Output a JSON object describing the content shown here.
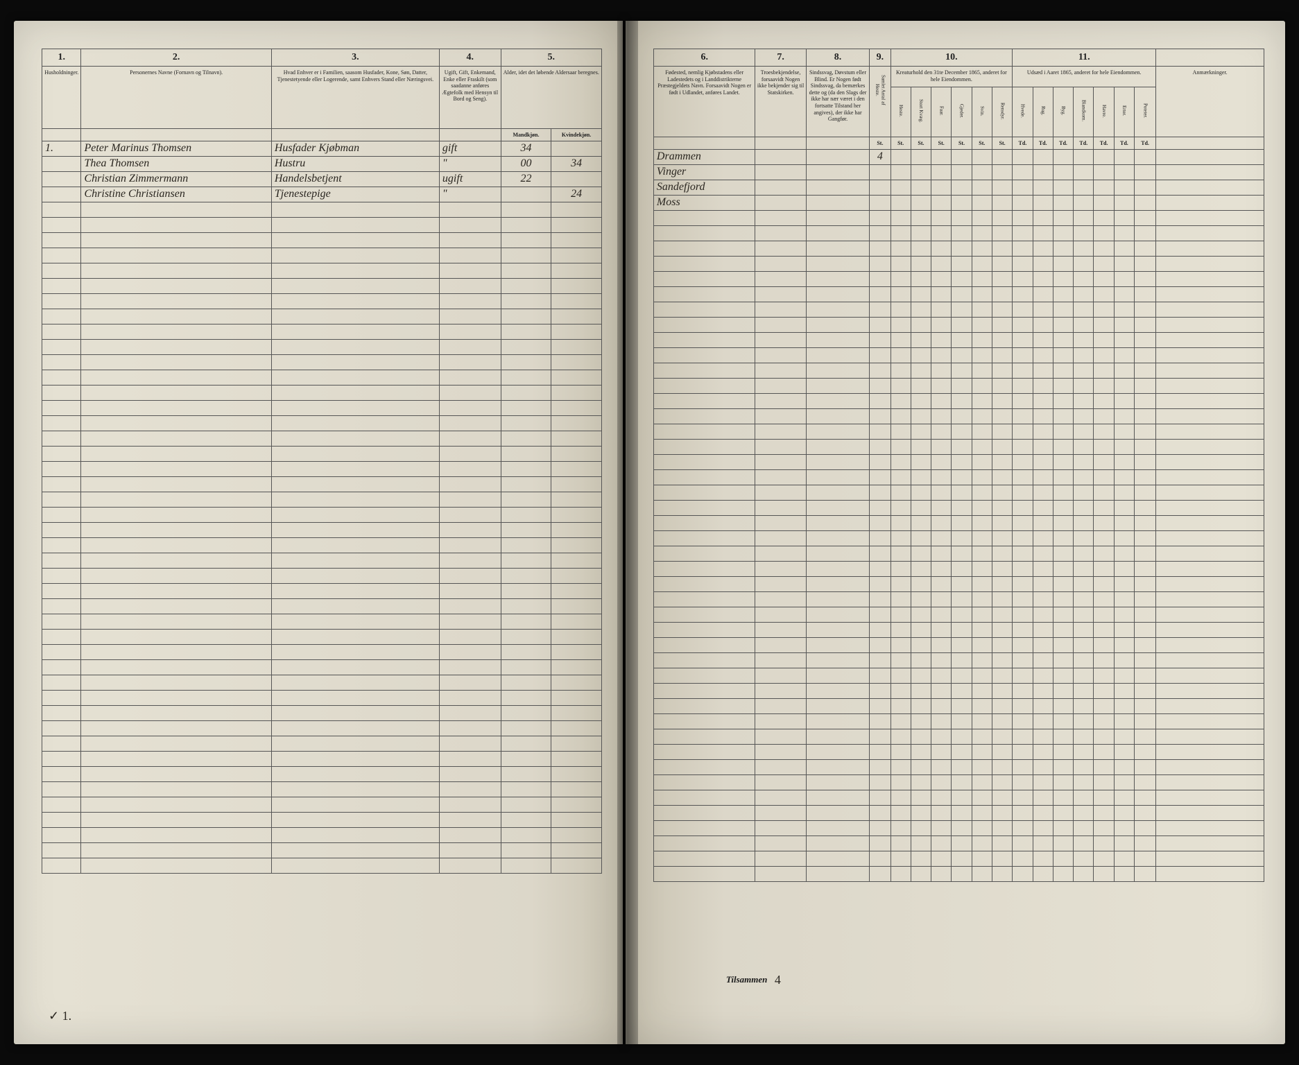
{
  "document": {
    "type": "census_ledger",
    "language": "norwegian_dano",
    "background_color": "#e0dccf",
    "ink_color": "#2a2620",
    "rule_color": "#555555"
  },
  "left_page": {
    "columns": {
      "c1": {
        "num": "1.",
        "header": "Husholdninger."
      },
      "c2": {
        "num": "2.",
        "header": "Personernes Navne (Fornavn og Tilnavn)."
      },
      "c3": {
        "num": "3.",
        "header": "Hvad Enhver er i Familien, saasom Husfader, Kone, Søn, Datter, Tjenestetyende eller Logerende, samt Enhvers Stand eller Næringsvei."
      },
      "c4": {
        "num": "4.",
        "header": "Ugift, Gift, Enkemand, Enke eller Fraskilt (som saadanne anføres Ægtefolk med Hensyn til Bord og Seng)."
      },
      "c5": {
        "num": "5.",
        "header": "Alder, idet det løbende Aldersaar beregnes.",
        "sub_m": "Mandkjøn.",
        "sub_k": "Kvindekjøn."
      }
    },
    "rows": [
      {
        "hh": "1.",
        "name": "Peter Marinus Thomsen",
        "role": "Husfader Kjøbman",
        "status": "gift",
        "age_m": "34",
        "age_k": ""
      },
      {
        "hh": "",
        "name": "Thea Thomsen",
        "role": "Hustru",
        "status": "\"",
        "age_m": "00",
        "age_k": "34"
      },
      {
        "hh": "",
        "name": "Christian Zimmermann",
        "role": "Handelsbetjent",
        "status": "ugift",
        "age_m": "22",
        "age_k": ""
      },
      {
        "hh": "",
        "name": "Christine Christiansen",
        "role": "Tjenestepige",
        "status": "\"",
        "age_m": "",
        "age_k": "24"
      }
    ],
    "footer_mark": "✓ 1.",
    "empty_rows": 44
  },
  "right_page": {
    "columns": {
      "c6": {
        "num": "6.",
        "header": "Fødested, nemlig Kjøbstadens eller Ladestedets og i Landdistrikterne Præstegjeldets Navn. Forsaavidt Nogen er født i Udlandet, anføres Landet."
      },
      "c7": {
        "num": "7.",
        "header": "Troesbekjendelse, forsaavidt Nogen ikke bekjender sig til Statskirken."
      },
      "c8": {
        "num": "8.",
        "header": "Sindssvag, Døvstum eller Blind. Er Nogen født Sindssvag, da bemærkes dette og (da den Slags der ikke har nær været i den fortsatte Tilstand her angives), der ikke har Gangfør."
      },
      "c9": {
        "num": "9.",
        "header_line1": "Samlet Antal af Heste.",
        "sub": "St."
      },
      "c10": {
        "num": "10.",
        "header": "Kreaturhold den 31te December 1865, anderet for hele Eiendommen.",
        "subs": [
          "Heste.",
          "Stort Kvæg.",
          "Faar.",
          "Gjeder.",
          "Svin.",
          "Rensdyr."
        ],
        "unit": "St."
      },
      "c11": {
        "num": "11.",
        "header": "Udsæd i Aaret 1865, anderet for hele Eiendommen.",
        "subs": [
          "Hvede.",
          "Rug.",
          "Byg.",
          "Blandkorn.",
          "Havre.",
          "Erter.",
          "Poteter."
        ],
        "unit": "Td."
      },
      "c_rem": {
        "header": "Anmærkninger."
      }
    },
    "rows": [
      {
        "birthplace": "Drammen",
        "c9": "4"
      },
      {
        "birthplace": "Vinger",
        "c9": ""
      },
      {
        "birthplace": "Sandefjord",
        "c9": ""
      },
      {
        "birthplace": "Moss",
        "c9": ""
      }
    ],
    "footer_label": "Tilsammen",
    "footer_tally": "4",
    "empty_rows": 44
  }
}
